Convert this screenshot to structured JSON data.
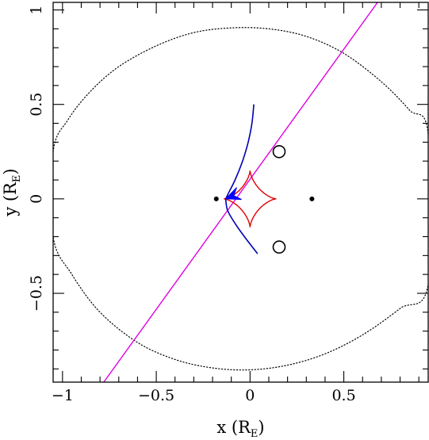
{
  "chart_data": {
    "type": "scatter",
    "title": "",
    "xlabel": {
      "main": "x (R",
      "sub": "E",
      "close": ")"
    },
    "ylabel": {
      "main": "y (R",
      "sub": "E",
      "close": ")"
    },
    "xlim": [
      -1.05,
      0.95
    ],
    "ylim": [
      -0.97,
      1.04
    ],
    "x_major_ticks": [
      -1,
      -0.5,
      0,
      0.5
    ],
    "x_tick_labels": [
      "−1",
      "−0.5",
      "0",
      "0.5"
    ],
    "y_major_ticks": [
      -0.5,
      0,
      0.5,
      1
    ],
    "y_tick_labels": [
      "−0.5",
      "0",
      "0.5",
      "1"
    ],
    "minor_tick_step": 0.1,
    "grid": false,
    "colors": {
      "caustic": "#e00000",
      "trajectory": "#0000ff",
      "source_track": "#000080",
      "critical_curve": "#000000",
      "lens_plane_line": "#e000e0",
      "points": "#000000"
    },
    "critical_curve": {
      "style": "dotted",
      "points": [
        [
          -1.05,
          0.25
        ],
        [
          -0.97,
          0.42
        ],
        [
          -0.85,
          0.57
        ],
        [
          -0.7,
          0.7
        ],
        [
          -0.5,
          0.81
        ],
        [
          -0.3,
          0.88
        ],
        [
          -0.1,
          0.905
        ],
        [
          0.1,
          0.9
        ],
        [
          0.3,
          0.86
        ],
        [
          0.5,
          0.77
        ],
        [
          0.7,
          0.62
        ],
        [
          0.85,
          0.47
        ],
        [
          0.95,
          0.34
        ],
        [
          0.95,
          -0.45
        ],
        [
          0.8,
          -0.58
        ],
        [
          0.6,
          -0.72
        ],
        [
          0.4,
          -0.82
        ],
        [
          0.2,
          -0.88
        ],
        [
          0.0,
          -0.905
        ],
        [
          -0.2,
          -0.895
        ],
        [
          -0.4,
          -0.85
        ],
        [
          -0.6,
          -0.76
        ],
        [
          -0.8,
          -0.6
        ],
        [
          -0.95,
          -0.4
        ],
        [
          -1.05,
          -0.2
        ]
      ]
    },
    "caustic": {
      "center": [
        0.0,
        0.0
      ],
      "a": 0.14,
      "b": 0.15
    },
    "lens_masses": [
      {
        "x": -0.18,
        "y": 0.0
      },
      {
        "x": 0.33,
        "y": 0.0
      }
    ],
    "image_circles": [
      {
        "x": 0.155,
        "y": 0.25
      },
      {
        "x": 0.155,
        "y": -0.255
      }
    ],
    "line_of_sight": {
      "x1": -0.78,
      "y1": -0.97,
      "x2": 0.68,
      "y2": 1.04
    },
    "source_track_upper": [
      [
        0.02,
        0.5
      ],
      [
        0.01,
        0.4
      ],
      [
        -0.01,
        0.3
      ],
      [
        -0.04,
        0.2
      ],
      [
        -0.08,
        0.1
      ],
      [
        -0.11,
        0.04
      ],
      [
        -0.13,
        0.0
      ]
    ],
    "source_track_lower": [
      [
        -0.13,
        0.0
      ],
      [
        -0.12,
        -0.06
      ],
      [
        -0.08,
        -0.13
      ],
      [
        -0.03,
        -0.2
      ],
      [
        0.04,
        -0.29
      ]
    ],
    "arrow": {
      "x": -0.13,
      "y": 0.0,
      "from_x": -0.08,
      "from_y": 0.02
    }
  }
}
